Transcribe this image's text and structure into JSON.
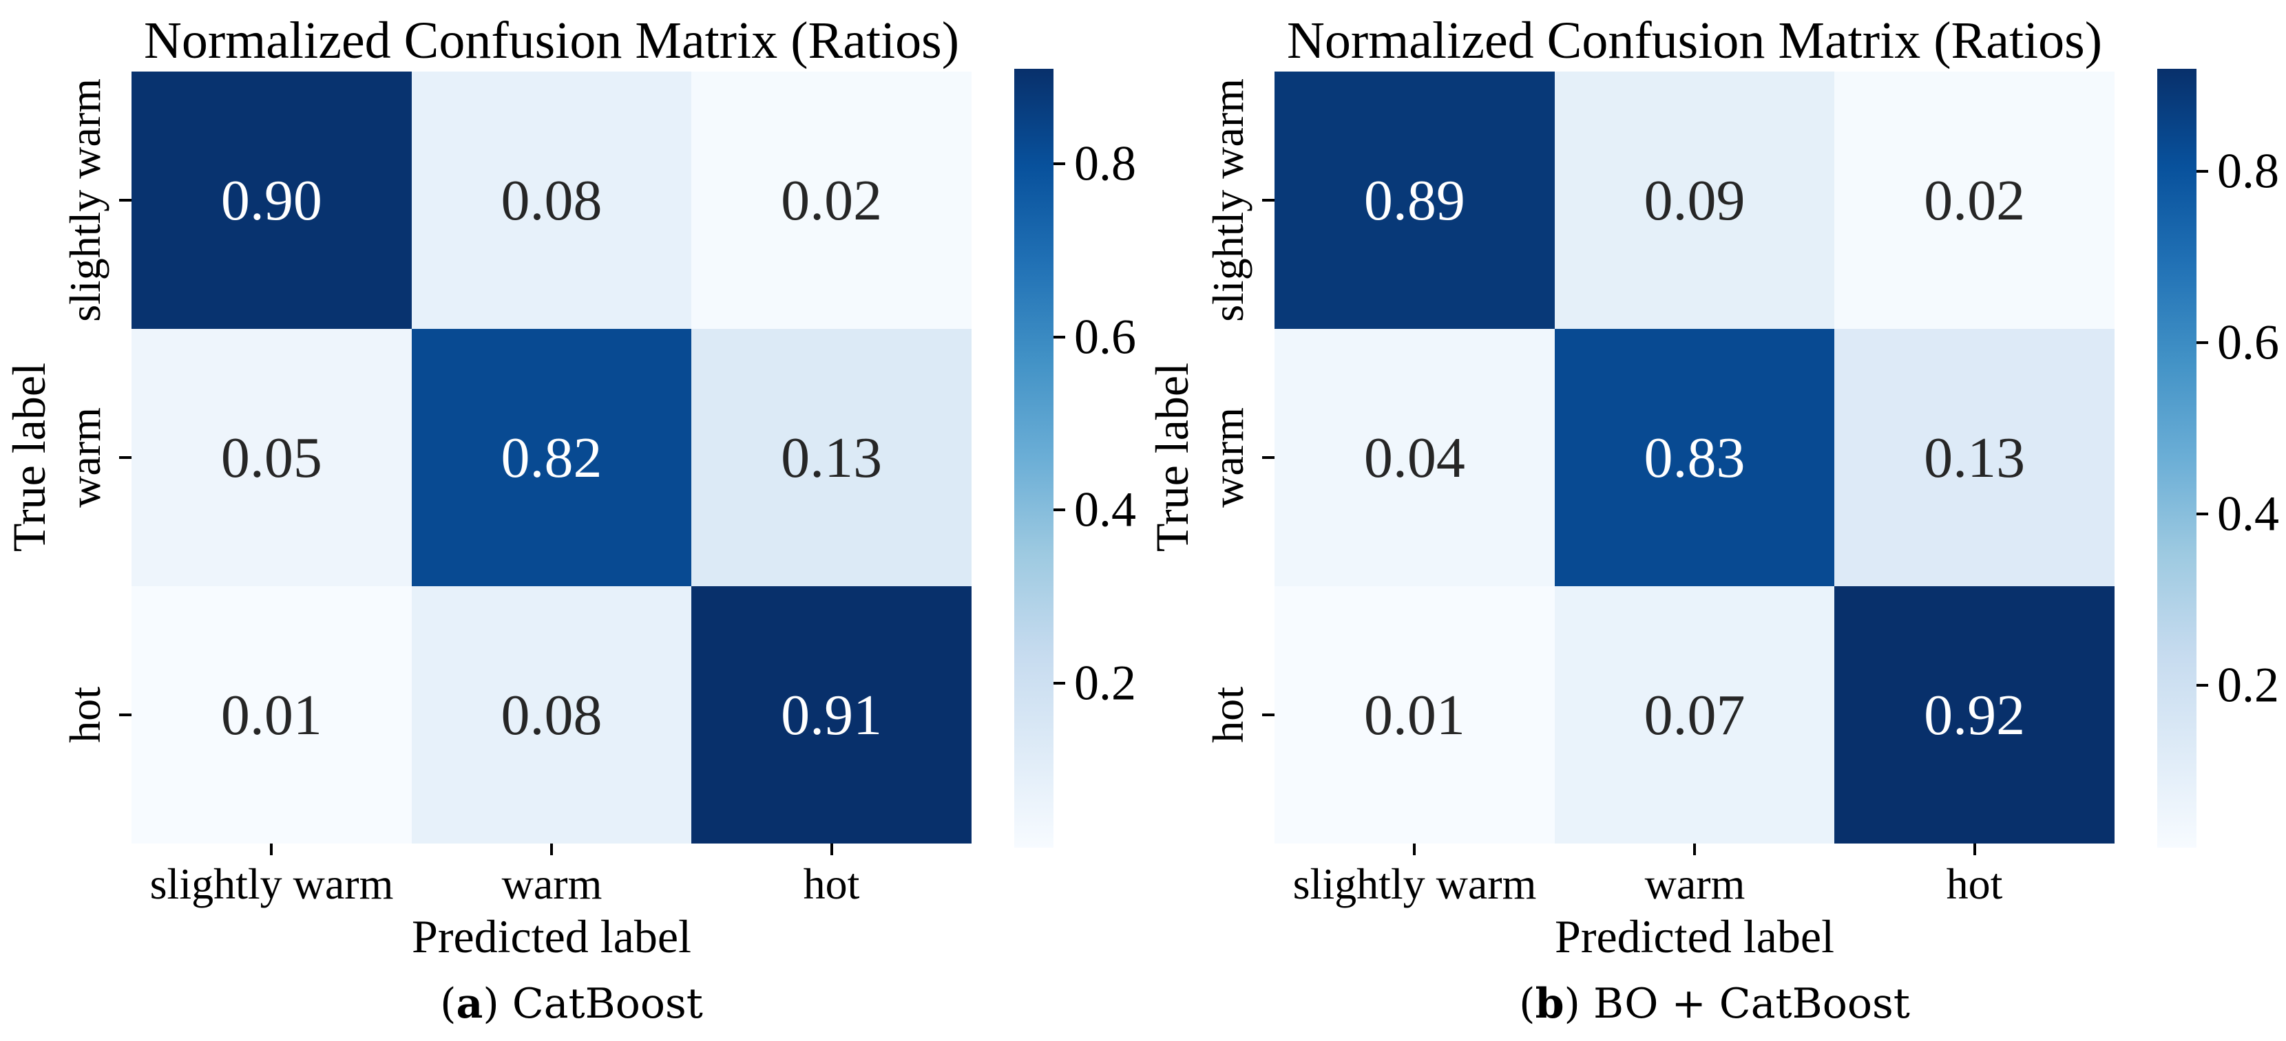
{
  "figure_background": "#ffffff",
  "panels": [
    {
      "title": "Normalized Confusion Matrix (Ratios)",
      "ylabel": "True label",
      "xlabel": "Predicted label",
      "y_tick_labels": [
        "slightly warm",
        "warm",
        "hot"
      ],
      "x_tick_labels": [
        "slightly warm",
        "warm",
        "hot"
      ],
      "cell_labels": [
        "0.90",
        "0.08",
        "0.02",
        "0.05",
        "0.82",
        "0.13",
        "0.01",
        "0.08",
        "0.91"
      ],
      "colorbar_tick_labels": [
        "0.8",
        "0.6",
        "0.4",
        "0.2"
      ],
      "caption": {
        "open": "(",
        "letter": "a",
        "rest": ") CatBoost"
      }
    },
    {
      "title": "Normalized Confusion Matrix (Ratios)",
      "ylabel": "True label",
      "xlabel": "Predicted label",
      "y_tick_labels": [
        "slightly warm",
        "warm",
        "hot"
      ],
      "x_tick_labels": [
        "slightly warm",
        "warm",
        "hot"
      ],
      "cell_labels": [
        "0.89",
        "0.09",
        "0.02",
        "0.04",
        "0.83",
        "0.13",
        "0.01",
        "0.07",
        "0.92"
      ],
      "colorbar_tick_labels": [
        "0.8",
        "0.6",
        "0.4",
        "0.2"
      ],
      "caption": {
        "open": "(",
        "letter": "b",
        "rest": ") BO + CatBoost"
      }
    }
  ],
  "colors": {
    "colormap_anchors": [
      "#f7fbff",
      "#deebf7",
      "#c6dbef",
      "#9ecae1",
      "#6baed6",
      "#4292c6",
      "#2171b5",
      "#08519c",
      "#08306b"
    ],
    "annot_on_light": "#262626",
    "annot_on_dark": "#ffffff",
    "tick_color": "#000000"
  },
  "chart_data": [
    {
      "type": "heatmap",
      "title": "Normalized Confusion Matrix (Ratios)",
      "caption": "(a) CatBoost",
      "xlabel": "Predicted label",
      "ylabel": "True label",
      "x_categories": [
        "slightly warm",
        "warm",
        "hot"
      ],
      "y_categories": [
        "slightly warm",
        "warm",
        "hot"
      ],
      "matrix": [
        [
          0.9,
          0.08,
          0.02
        ],
        [
          0.05,
          0.82,
          0.13
        ],
        [
          0.01,
          0.08,
          0.91
        ]
      ],
      "vmin": 0.01,
      "vmax": 0.91,
      "colormap": "Blues",
      "colorbar_ticks": [
        0.8,
        0.6,
        0.4,
        0.2
      ],
      "colorbar_position": "right",
      "grid": false,
      "annotations_format": "2-decimal ratios"
    },
    {
      "type": "heatmap",
      "title": "Normalized Confusion Matrix (Ratios)",
      "caption": "(b) BO + CatBoost",
      "xlabel": "Predicted label",
      "ylabel": "True label",
      "x_categories": [
        "slightly warm",
        "warm",
        "hot"
      ],
      "y_categories": [
        "slightly warm",
        "warm",
        "hot"
      ],
      "matrix": [
        [
          0.89,
          0.09,
          0.02
        ],
        [
          0.04,
          0.83,
          0.13
        ],
        [
          0.01,
          0.07,
          0.92
        ]
      ],
      "vmin": 0.01,
      "vmax": 0.92,
      "colormap": "Blues",
      "colorbar_ticks": [
        0.8,
        0.6,
        0.4,
        0.2
      ],
      "colorbar_position": "right",
      "grid": false,
      "annotations_format": "2-decimal ratios"
    }
  ]
}
